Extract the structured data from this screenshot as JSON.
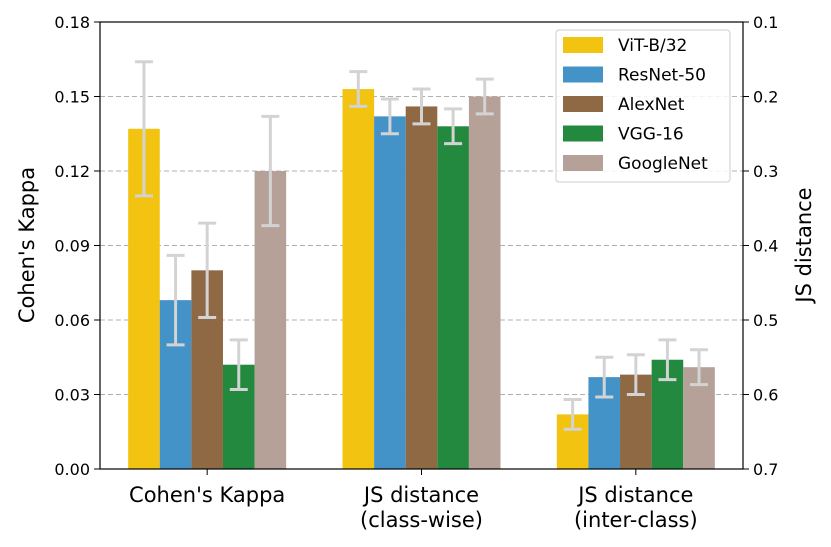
{
  "chart_data": {
    "type": "bar",
    "title": "",
    "ylabel": "Cohen's Kappa",
    "y2label": "JS distance",
    "ylim": [
      0,
      0.18
    ],
    "y2lim": [
      0.1,
      0.7
    ],
    "y2_inverted": true,
    "y_ticks": [
      "0.00",
      "0.03",
      "0.06",
      "0.09",
      "0.12",
      "0.15",
      "0.18"
    ],
    "y2_ticks": [
      "0.1",
      "0.2",
      "0.3",
      "0.4",
      "0.5",
      "0.6",
      "0.7"
    ],
    "grid": "horizontal dashed",
    "legend_position": "top-right",
    "categories": [
      [
        "Cohen's Kappa"
      ],
      [
        "JS distance",
        "(class-wise)"
      ],
      [
        "JS distance",
        "(inter-class)"
      ]
    ],
    "series": [
      {
        "name": "ViT-B/32",
        "color": "#f2c311",
        "values": [
          0.137,
          0.153,
          0.022
        ],
        "errors": [
          0.027,
          0.007,
          0.006
        ]
      },
      {
        "name": "ResNet-50",
        "color": "#4393c9",
        "values": [
          0.068,
          0.142,
          0.037
        ],
        "errors": [
          0.018,
          0.007,
          0.008
        ]
      },
      {
        "name": "AlexNet",
        "color": "#8f6844",
        "values": [
          0.08,
          0.146,
          0.038
        ],
        "errors": [
          0.019,
          0.007,
          0.008
        ]
      },
      {
        "name": "VGG-16",
        "color": "#23893f",
        "values": [
          0.042,
          0.138,
          0.044
        ],
        "errors": [
          0.01,
          0.007,
          0.008
        ]
      },
      {
        "name": "GoogleNet",
        "color": "#b5a197",
        "values": [
          0.12,
          0.15,
          0.041
        ],
        "errors": [
          0.022,
          0.007,
          0.007
        ]
      }
    ],
    "errorbar_color": "#d3d3d3"
  }
}
